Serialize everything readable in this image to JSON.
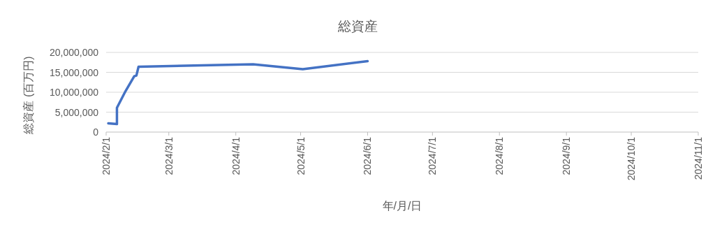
{
  "chart_data": {
    "type": "line",
    "title": "総資産",
    "xlabel": "年/月/日",
    "ylabel": "総資産 (百万円)",
    "x": [
      "2024-02-02",
      "2024-02-06",
      "2024-02-06",
      "2024-02-10",
      "2024-02-14",
      "2024-02-15",
      "2024-02-16",
      "2024-04-09",
      "2024-05-02",
      "2024-06-01"
    ],
    "series": [
      {
        "color": "#4472c4",
        "values": [
          2200000,
          2000000,
          6100000,
          10300000,
          14000000,
          14200000,
          16400000,
          17000000,
          15800000,
          17800000
        ]
      }
    ],
    "xlim": [
      "2024-02-01",
      "2024-11-01"
    ],
    "xticks": [
      {
        "value": "2024-02-01",
        "label": "2024/2/1"
      },
      {
        "value": "2024-03-01",
        "label": "2024/3/1"
      },
      {
        "value": "2024-04-01",
        "label": "2024/4/1"
      },
      {
        "value": "2024-05-01",
        "label": "2024/5/1"
      },
      {
        "value": "2024-06-01",
        "label": "2024/6/1"
      },
      {
        "value": "2024-07-01",
        "label": "2024/7/1"
      },
      {
        "value": "2024-08-01",
        "label": "2024/8/1"
      },
      {
        "value": "2024-09-01",
        "label": "2024/9/1"
      },
      {
        "value": "2024-10-01",
        "label": "2024/10/1"
      },
      {
        "value": "2024-11-01",
        "label": "2024/11/1"
      }
    ],
    "ylim": [
      0,
      20000000
    ],
    "yticks": [
      {
        "value": 0,
        "label": "0"
      },
      {
        "value": 5000000,
        "label": "5,000,000"
      },
      {
        "value": 10000000,
        "label": "10,000,000"
      },
      {
        "value": 15000000,
        "label": "15,000,000"
      },
      {
        "value": 20000000,
        "label": "20,000,000"
      }
    ],
    "grid": "y",
    "marker": "none",
    "line_style": "solid"
  }
}
